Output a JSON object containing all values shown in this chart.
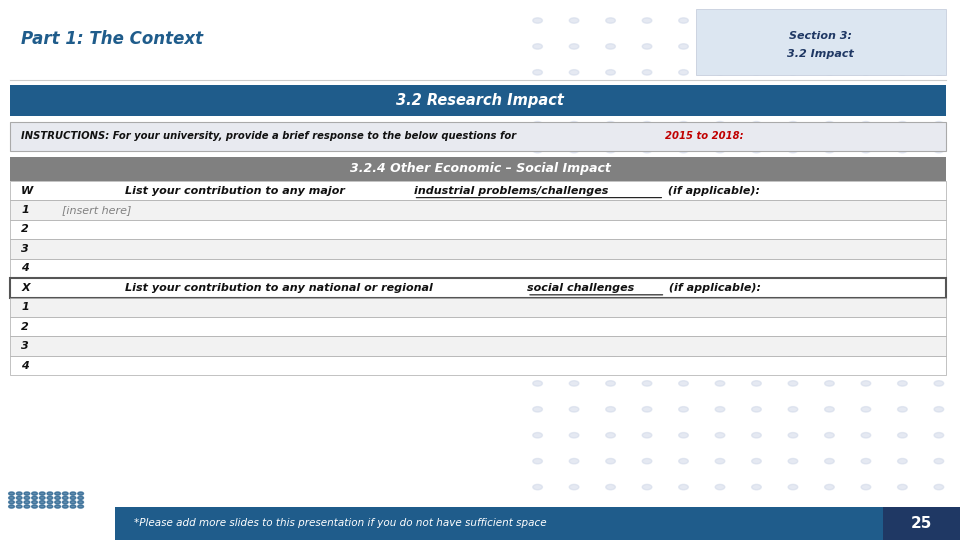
{
  "title_left": "Part 1: The Context",
  "title_left_color": "#1F5C8B",
  "section_box_text_line1": "Section 3:",
  "section_box_text_line2": "3.2 Impact",
  "section_box_bg": "#dce6f1",
  "section_box_text_color": "#1F3864",
  "main_header": "3.2 Research Impact",
  "main_header_bg": "#1F5C8B",
  "main_header_text_color": "#ffffff",
  "instructions_text_plain": "INSTRUCTIONS: For your university, provide a brief response to the below questions for ",
  "instructions_text_highlight": "2015 to 2018:",
  "instructions_highlight_color": "#C00000",
  "instructions_bg": "#e8eaf0",
  "instructions_border": "#aaaaaa",
  "sub_header": "3.2.4 Other Economic – Social Impact",
  "sub_header_bg": "#808080",
  "sub_header_text_color": "#ffffff",
  "row_w_label": "W",
  "row_w_text": "List your contribution to any major ",
  "row_w_underline": "industrial problems/challenges",
  "row_w_suffix": " (if applicable):",
  "row_x_label": "X",
  "row_x_text": "List your contribution to any national or regional ",
  "row_x_underline": "social challenges",
  "row_x_suffix": " (if applicable):",
  "row1_insert": "[insert here]",
  "row1_insert_color": "#808080",
  "numbered_rows_w": [
    "1",
    "2",
    "3",
    "4"
  ],
  "numbered_rows_x": [
    "1",
    "2",
    "3",
    "4"
  ],
  "footer_text": "*Please add more slides to this presentation if you do not have sufficient space",
  "footer_bg": "#1F5C8B",
  "footer_text_color": "#ffffff",
  "page_num": "25",
  "page_num_bg": "#1F3864",
  "page_num_color": "#ffffff",
  "table_border_color": "#aaaaaa",
  "table_bg_light": "#f2f2f2",
  "table_bg_white": "#ffffff",
  "bg_color": "#ffffff",
  "dot_pattern_color": "#d0d8e8"
}
